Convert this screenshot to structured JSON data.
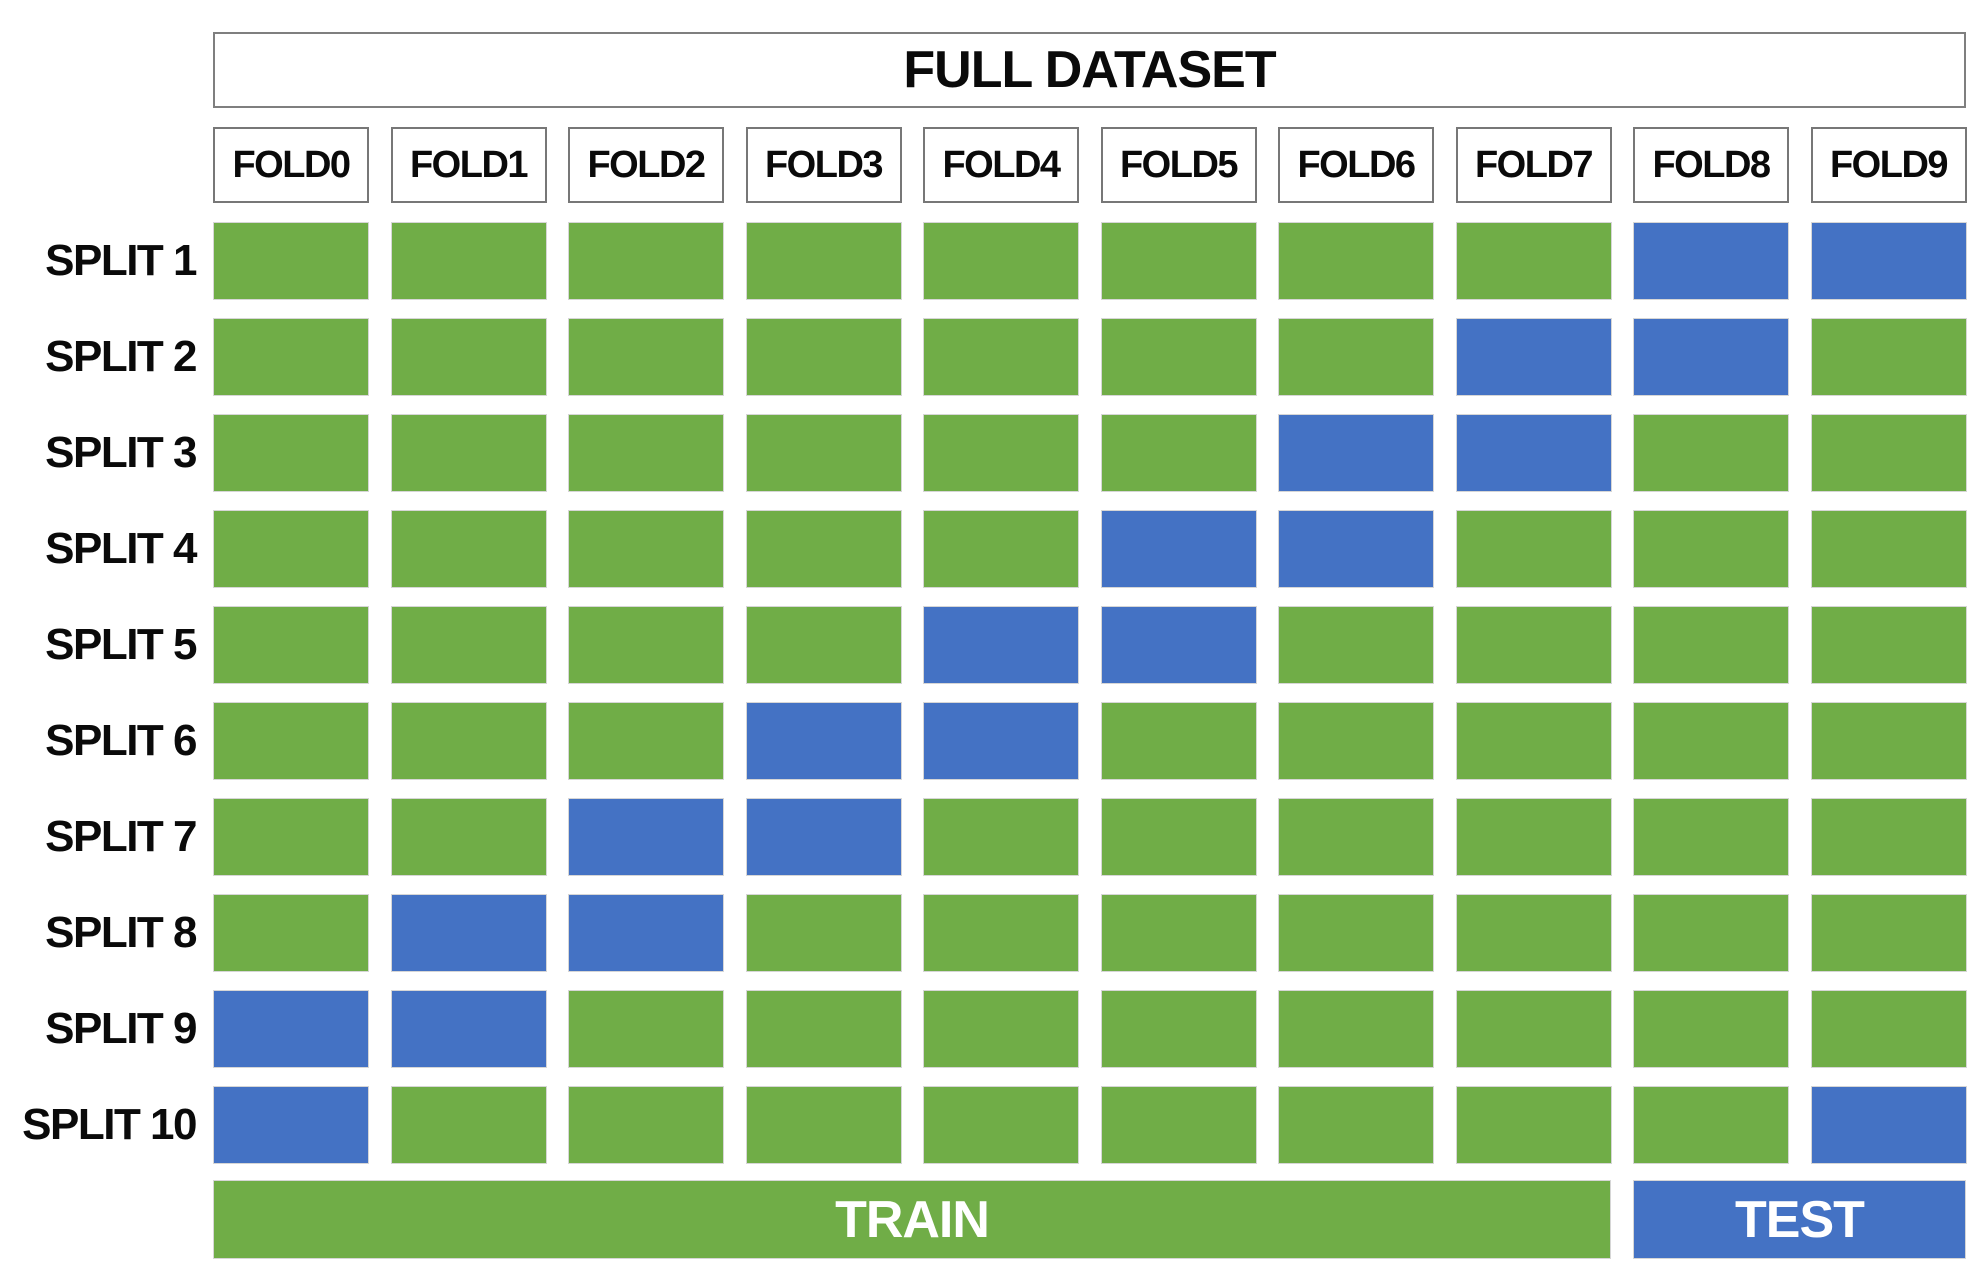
{
  "header": {
    "title": "FULL DATASET"
  },
  "folds": [
    "FOLD0",
    "FOLD1",
    "FOLD2",
    "FOLD3",
    "FOLD4",
    "FOLD5",
    "FOLD6",
    "FOLD7",
    "FOLD8",
    "FOLD9"
  ],
  "splits": [
    {
      "label": "SPLIT 1",
      "cells": [
        "train",
        "train",
        "train",
        "train",
        "train",
        "train",
        "train",
        "train",
        "test",
        "test"
      ]
    },
    {
      "label": "SPLIT 2",
      "cells": [
        "train",
        "train",
        "train",
        "train",
        "train",
        "train",
        "train",
        "test",
        "test",
        "train"
      ]
    },
    {
      "label": "SPLIT 3",
      "cells": [
        "train",
        "train",
        "train",
        "train",
        "train",
        "train",
        "test",
        "test",
        "train",
        "train"
      ]
    },
    {
      "label": "SPLIT 4",
      "cells": [
        "train",
        "train",
        "train",
        "train",
        "train",
        "test",
        "test",
        "train",
        "train",
        "train"
      ]
    },
    {
      "label": "SPLIT 5",
      "cells": [
        "train",
        "train",
        "train",
        "train",
        "test",
        "test",
        "train",
        "train",
        "train",
        "train"
      ]
    },
    {
      "label": "SPLIT 6",
      "cells": [
        "train",
        "train",
        "train",
        "test",
        "test",
        "train",
        "train",
        "train",
        "train",
        "train"
      ]
    },
    {
      "label": "SPLIT 7",
      "cells": [
        "train",
        "train",
        "test",
        "test",
        "train",
        "train",
        "train",
        "train",
        "train",
        "train"
      ]
    },
    {
      "label": "SPLIT 8",
      "cells": [
        "train",
        "test",
        "test",
        "train",
        "train",
        "train",
        "train",
        "train",
        "train",
        "train"
      ]
    },
    {
      "label": "SPLIT 9",
      "cells": [
        "test",
        "test",
        "train",
        "train",
        "train",
        "train",
        "train",
        "train",
        "train",
        "train"
      ]
    },
    {
      "label": "SPLIT 10",
      "cells": [
        "test",
        "train",
        "train",
        "train",
        "train",
        "train",
        "train",
        "train",
        "train",
        "test"
      ]
    }
  ],
  "legend": {
    "train_label": "TRAIN",
    "test_label": "TEST"
  },
  "colors": {
    "train": "#70AD47",
    "test": "#4472C4",
    "box_border": "#7f7f7f",
    "text": "#0a0a0a",
    "bar_text": "#ffffff"
  }
}
